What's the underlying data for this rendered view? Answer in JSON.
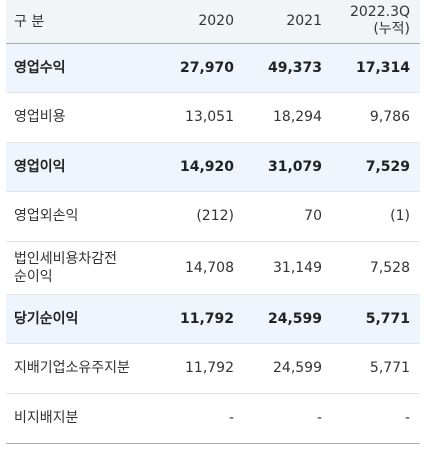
{
  "header": {
    "label": "구 분",
    "col_2020": "2020",
    "col_2021": "2021",
    "col_2022_line1": "2022.3Q",
    "col_2022_line2": "(누적)"
  },
  "rows": [
    {
      "label": "영업수익",
      "v2020": "27,970",
      "v2021": "49,373",
      "v2022": "17,314",
      "highlight": true
    },
    {
      "label": "영업비용",
      "v2020": "13,051",
      "v2021": "18,294",
      "v2022": "9,786",
      "highlight": false
    },
    {
      "label": "영업이익",
      "v2020": "14,920",
      "v2021": "31,079",
      "v2022": "7,529",
      "highlight": true
    },
    {
      "label": "영업외손익",
      "v2020": "(212)",
      "v2021": "70",
      "v2022": "(1)",
      "highlight": false
    },
    {
      "label_line1": "법인세비용차감전",
      "label_line2": "순이익",
      "v2020": "14,708",
      "v2021": "31,149",
      "v2022": "7,528",
      "highlight": false
    },
    {
      "label": "당기순이익",
      "v2020": "11,792",
      "v2021": "24,599",
      "v2022": "5,771",
      "highlight": true
    },
    {
      "label": "지배기업소유주지분",
      "v2020": "11,792",
      "v2021": "24,599",
      "v2022": "5,771",
      "highlight": false
    },
    {
      "label": "비지배지분",
      "v2020": "-",
      "v2021": "-",
      "v2022": "-",
      "highlight": false
    }
  ],
  "colors": {
    "highlight_row": "#eef5fd",
    "header_bg": "#f2f5f8",
    "border_accent": "#8fb5d9",
    "row_divider": "#e3e7eb"
  }
}
